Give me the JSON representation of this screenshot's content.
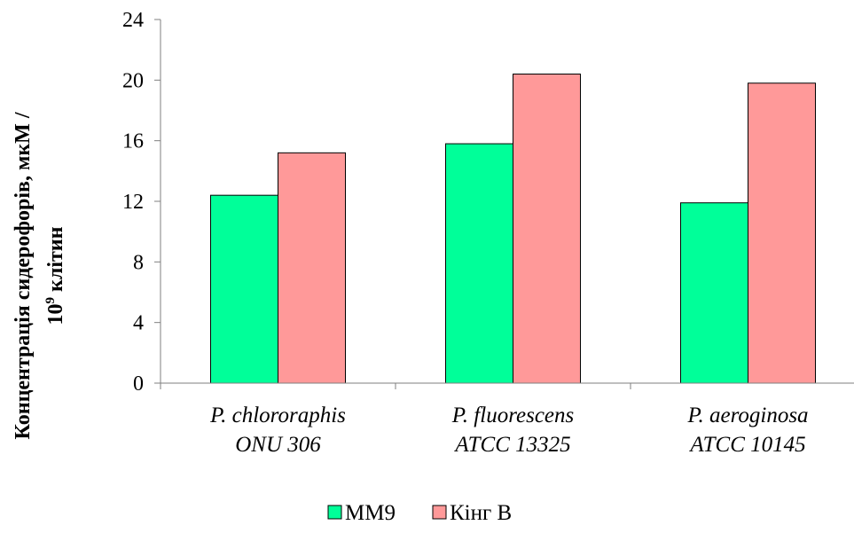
{
  "chart_data": {
    "type": "bar",
    "categories": [
      [
        "P. chlororaphis",
        "ONU 306"
      ],
      [
        "P. fluorescens",
        "ATCC 13325"
      ],
      [
        "P. aeroginosa",
        "ATCC 10145"
      ]
    ],
    "series": [
      {
        "name": "ММ9",
        "color": "#00ff99",
        "values": [
          12.4,
          15.8,
          11.9
        ]
      },
      {
        "name": "Кінг В",
        "color": "#ff9999",
        "values": [
          15.2,
          20.4,
          19.8
        ]
      }
    ],
    "ylabel_line1": "Концентрація сидерофорів, мкМ /",
    "ylabel_line2_base": "10",
    "ylabel_line2_sup": "9",
    "ylabel_line2_rest": " клітин",
    "ylim": [
      0,
      24
    ],
    "yticks": [
      0,
      4,
      8,
      12,
      16,
      20,
      24
    ],
    "grid": false,
    "legend_position": "bottom"
  }
}
